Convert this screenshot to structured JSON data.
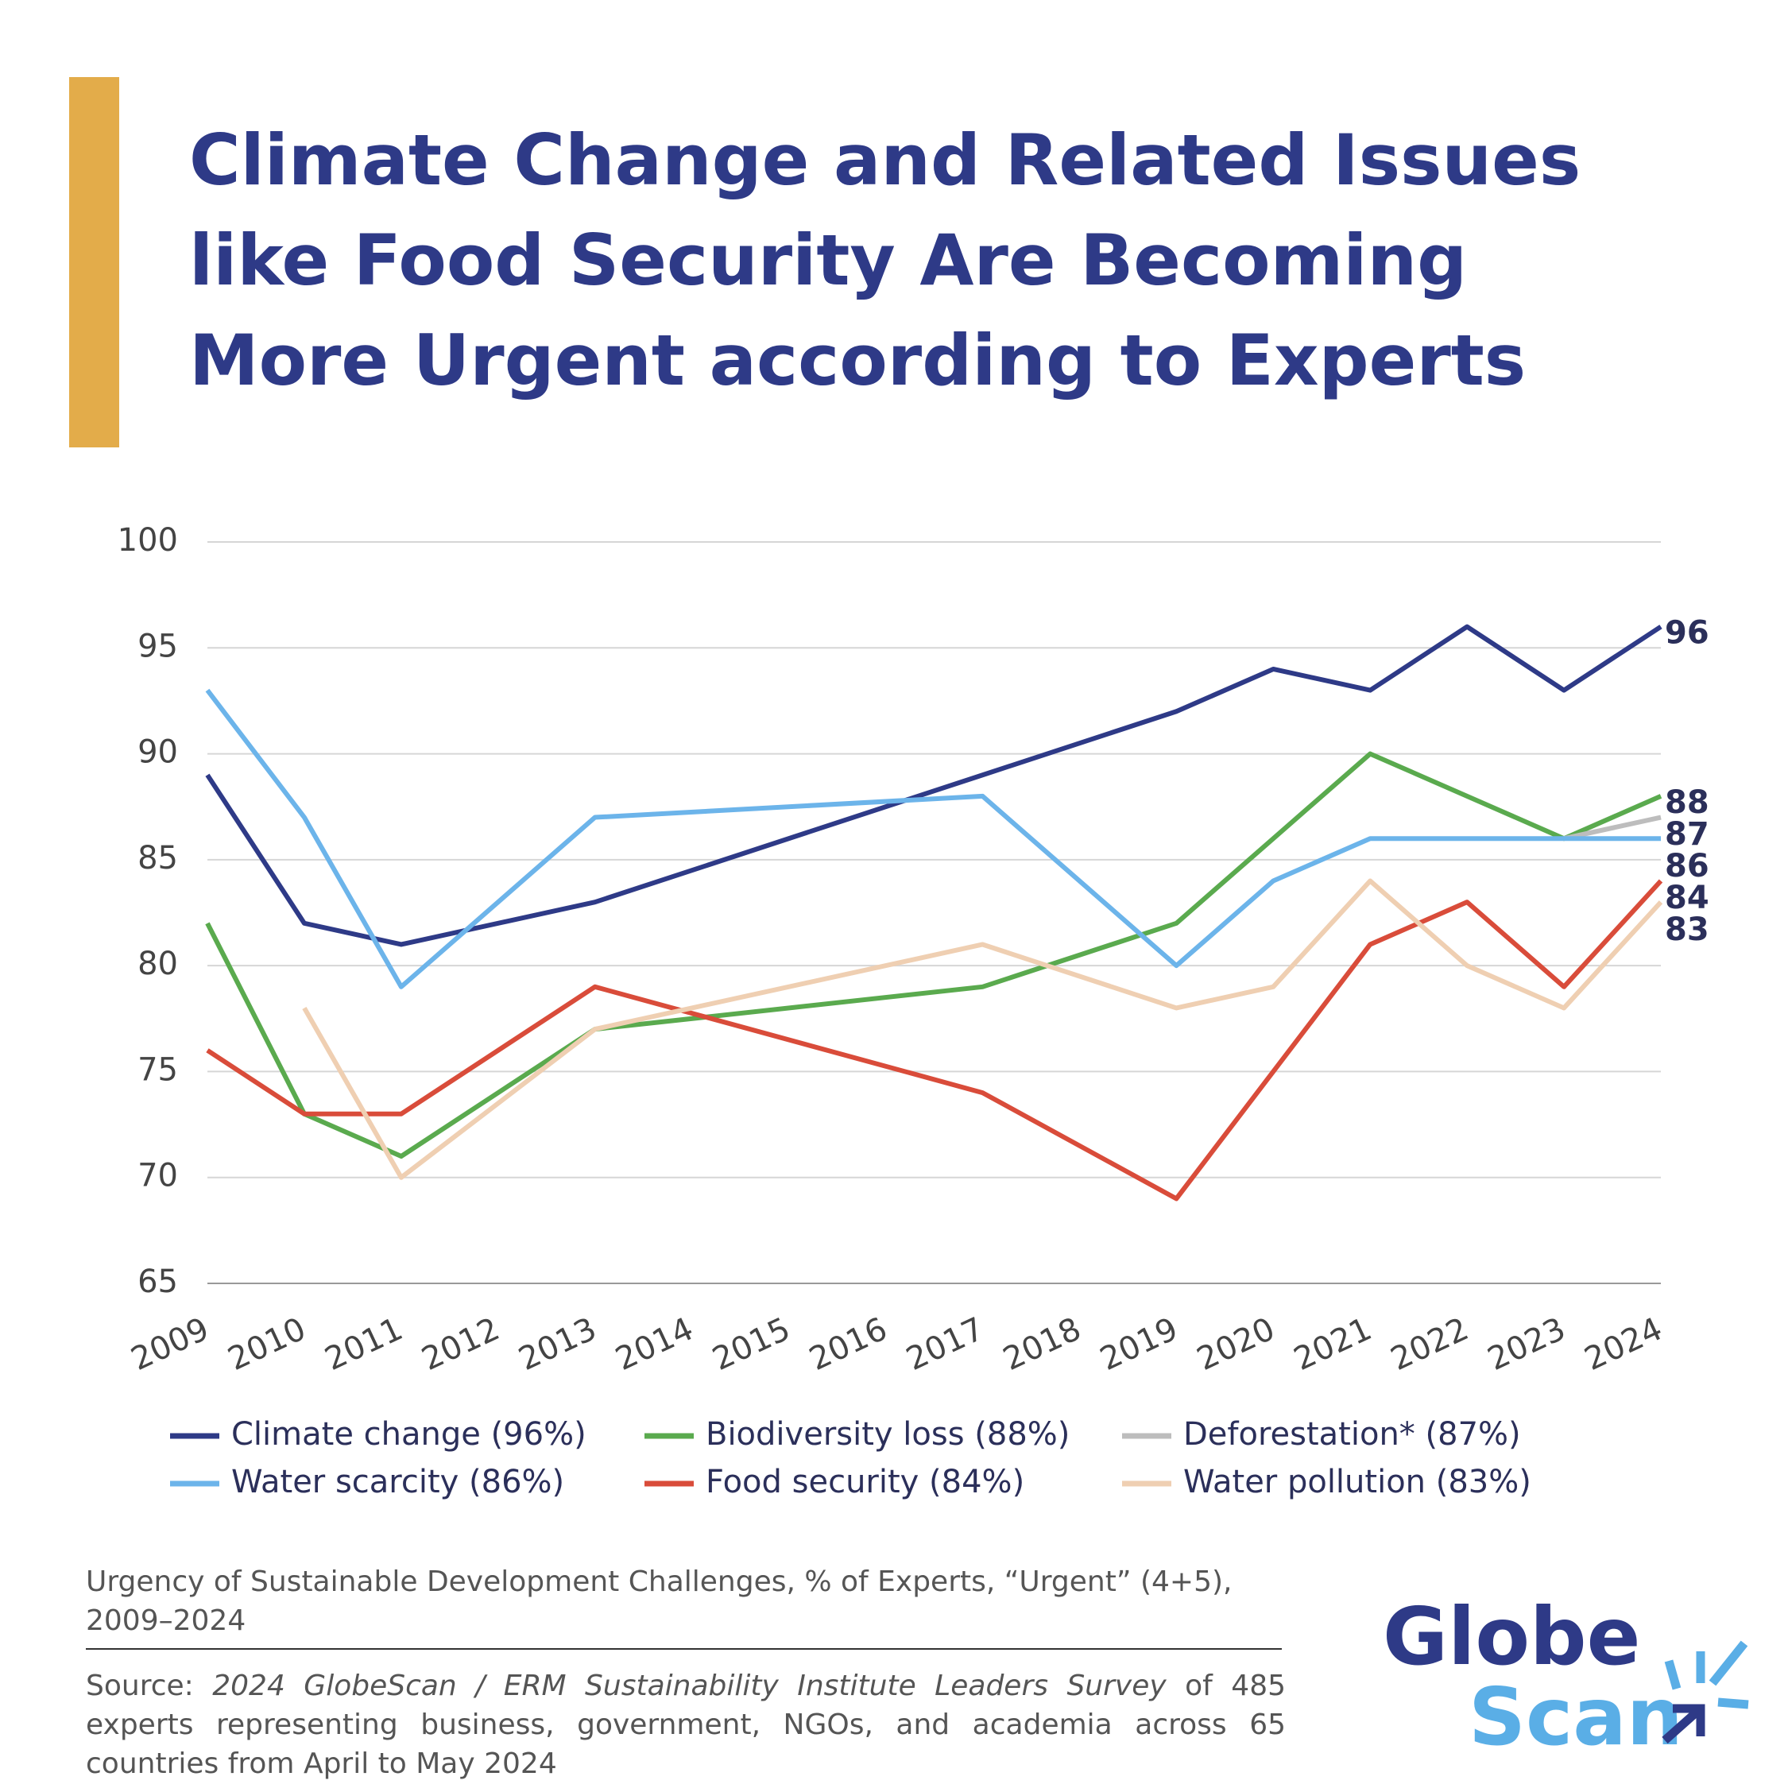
{
  "title_lines": [
    "Climate Change and Related Issues",
    "like Food Security Are Becoming",
    "More Urgent according to Experts"
  ],
  "chart_data": {
    "type": "line",
    "xlim": [
      2009,
      2024
    ],
    "xticks": [
      2009,
      2010,
      2011,
      2012,
      2013,
      2014,
      2015,
      2016,
      2017,
      2018,
      2019,
      2020,
      2021,
      2022,
      2023,
      2024
    ],
    "ylim": [
      65,
      100
    ],
    "yticks": [
      65,
      70,
      75,
      80,
      85,
      90,
      95,
      100
    ],
    "grid": true,
    "series": [
      {
        "name": "Climate change (96%)",
        "color": "#2e3a87",
        "x": [
          2009,
          2010,
          2011,
          2013,
          2017,
          2019,
          2020,
          2021,
          2022,
          2023,
          2024
        ],
        "values": [
          89,
          82,
          81,
          83,
          89,
          92,
          94,
          93,
          96,
          93,
          96
        ]
      },
      {
        "name": "Biodiversity loss (88%)",
        "color": "#5aaa4e",
        "x": [
          2009,
          2010,
          2011,
          2013,
          2017,
          2019,
          2020,
          2021,
          2023,
          2024
        ],
        "values": [
          82,
          73,
          71,
          77,
          79,
          82,
          86,
          90,
          86,
          88
        ]
      },
      {
        "name": "Deforestation* (87%)",
        "color": "#bdbdbd",
        "x": [
          2023,
          2024
        ],
        "values": [
          86,
          87
        ]
      },
      {
        "name": "Water scarcity (86%)",
        "color": "#6cb4ea",
        "x": [
          2009,
          2010,
          2011,
          2013,
          2017,
          2019,
          2020,
          2021,
          2022,
          2023,
          2024
        ],
        "values": [
          93,
          87,
          79,
          87,
          88,
          80,
          84,
          86,
          86,
          86,
          86
        ]
      },
      {
        "name": "Food security (84%)",
        "color": "#d94c3a",
        "x": [
          2009,
          2010,
          2011,
          2013,
          2017,
          2019,
          2021,
          2022,
          2023,
          2024
        ],
        "values": [
          76,
          73,
          73,
          79,
          74,
          69,
          81,
          83,
          79,
          84
        ]
      },
      {
        "name": "Water pollution (83%)",
        "color": "#efcfb2",
        "x": [
          2010,
          2011,
          2013,
          2017,
          2019,
          2020,
          2021,
          2022,
          2023,
          2024
        ],
        "values": [
          78,
          70,
          77,
          81,
          78,
          79,
          84,
          80,
          78,
          83
        ]
      }
    ]
  },
  "caption": "Urgency of Sustainable Development Challenges, % of Experts, “Urgent” (4+5), 2009–2024",
  "source": {
    "label": "Source:",
    "title": "2024 GlobeScan / ERM Sustainability Institute Leaders Survey",
    "text": "of 485 experts representing business, government, NGOs, and academia across 65 countries from April to May 2024"
  },
  "logo": {
    "line1": "Globe",
    "line2": "Scan"
  }
}
